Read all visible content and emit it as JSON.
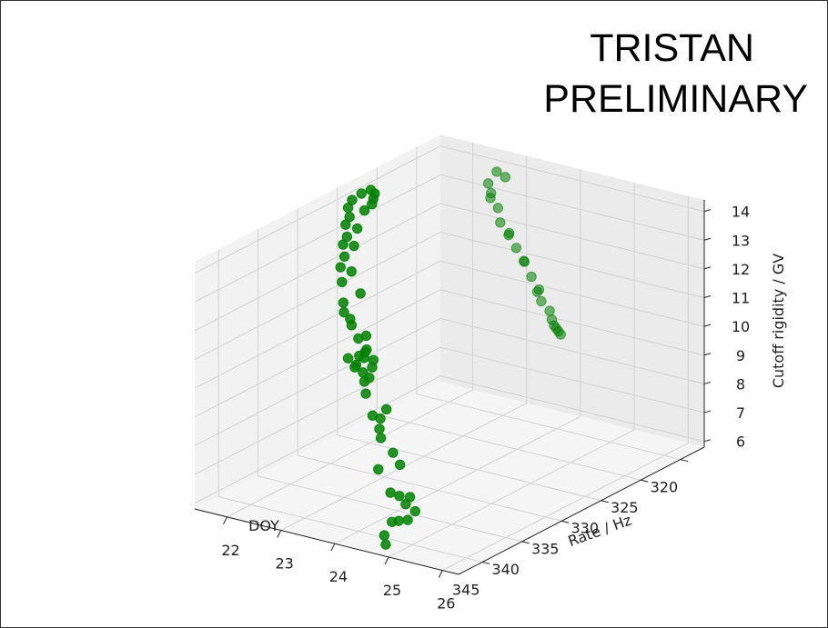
{
  "banner": {
    "line1": "TRISTAN",
    "line2": "PRELIMINARY"
  },
  "chart_data": {
    "type": "scatter",
    "projection": "3d",
    "xlabel": "DOY",
    "ylabel": "Rate / Hz",
    "zlabel": "Cutoff rigidity / GV",
    "xlim": [
      317,
      348
    ],
    "ylim": [
      21.4,
      26.3
    ],
    "zlim": [
      5.8,
      14.4
    ],
    "xticks": [
      320,
      325,
      330,
      335,
      340,
      345
    ],
    "yticks": [
      22,
      23,
      24,
      25,
      26
    ],
    "zticks": [
      6,
      7,
      8,
      9,
      10,
      11,
      12,
      13,
      14
    ],
    "grid": true,
    "marker_color": "#008000",
    "point_groups": [
      {
        "name_hint": "near",
        "points": [
          [
            347.0,
            24.8,
            6.0
          ],
          [
            346.5,
            24.7,
            6.2
          ],
          [
            346.0,
            25.2,
            7.2
          ],
          [
            345.3,
            25.0,
            7.5
          ],
          [
            344.6,
            24.7,
            7.3
          ],
          [
            344.0,
            24.6,
            6.3
          ],
          [
            343.5,
            24.4,
            6.1
          ],
          [
            343.0,
            24.3,
            7.0
          ],
          [
            342.5,
            24.0,
            7.6
          ],
          [
            342.0,
            24.2,
            8.2
          ],
          [
            341.5,
            23.9,
            8.5
          ],
          [
            341.0,
            23.8,
            8.7
          ],
          [
            340.5,
            23.6,
            9.0
          ],
          [
            340.0,
            23.4,
            9.6
          ],
          [
            339.5,
            23.3,
            9.9
          ],
          [
            339.0,
            23.2,
            10.1
          ],
          [
            338.5,
            23.0,
            10.2
          ],
          [
            338.0,
            22.9,
            10.0
          ],
          [
            337.5,
            23.0,
            10.3
          ],
          [
            337.0,
            23.1,
            10.2
          ],
          [
            336.5,
            22.9,
            10.4
          ],
          [
            336.0,
            22.8,
            10.2
          ],
          [
            335.5,
            22.6,
            10.5
          ],
          [
            335.0,
            22.4,
            10.8
          ],
          [
            334.5,
            22.3,
            10.9
          ],
          [
            334.0,
            22.1,
            11.3
          ],
          [
            333.5,
            22.0,
            11.9
          ],
          [
            333.0,
            21.9,
            12.3
          ],
          [
            332.5,
            21.9,
            12.6
          ],
          [
            332.0,
            21.8,
            12.9
          ],
          [
            331.5,
            21.8,
            13.1
          ],
          [
            331.0,
            21.7,
            13.4
          ],
          [
            330.5,
            21.7,
            13.6
          ],
          [
            330.0,
            21.6,
            13.8
          ],
          [
            329.5,
            21.6,
            14.0
          ],
          [
            329.0,
            21.7,
            14.2
          ],
          [
            328.5,
            21.8,
            14.3
          ],
          [
            328.0,
            21.8,
            14.1
          ],
          [
            327.5,
            21.7,
            13.8
          ],
          [
            327.0,
            21.6,
            13.5
          ],
          [
            339.2,
            23.4,
            10.4
          ],
          [
            338.8,
            23.1,
            10.6
          ],
          [
            338.2,
            23.2,
            9.8
          ],
          [
            340.8,
            23.9,
            9.4
          ],
          [
            336.8,
            22.6,
            10.0
          ],
          [
            335.2,
            22.7,
            10.6
          ],
          [
            334.6,
            22.2,
            11.1
          ],
          [
            333.2,
            22.3,
            11.6
          ],
          [
            332.3,
            22.0,
            12.1
          ],
          [
            331.3,
            21.9,
            12.8
          ],
          [
            330.2,
            21.8,
            13.2
          ],
          [
            329.3,
            21.8,
            13.7
          ],
          [
            344.9,
            24.9,
            6.6
          ],
          [
            343.8,
            24.7,
            6.9
          ],
          [
            341.8,
            24.3,
            7.8
          ],
          [
            340.2,
            23.7,
            8.9
          ]
        ]
      },
      {
        "name_hint": "far",
        "points": [
          [
            319.0,
            22.9,
            13.9
          ],
          [
            319.4,
            22.8,
            14.1
          ],
          [
            319.8,
            22.7,
            13.7
          ],
          [
            320.2,
            22.8,
            13.3
          ],
          [
            320.6,
            23.0,
            13.1
          ],
          [
            321.0,
            23.1,
            12.7
          ],
          [
            321.3,
            23.3,
            12.4
          ],
          [
            321.7,
            23.5,
            12.1
          ],
          [
            322.1,
            23.7,
            11.8
          ],
          [
            322.5,
            23.9,
            11.4
          ],
          [
            322.9,
            24.1,
            11.1
          ],
          [
            323.3,
            24.2,
            10.8
          ],
          [
            323.6,
            24.4,
            10.6
          ],
          [
            324.0,
            24.5,
            10.4
          ],
          [
            324.4,
            24.6,
            10.3
          ],
          [
            324.8,
            24.7,
            10.3
          ],
          [
            325.2,
            24.8,
            10.3
          ],
          [
            325.6,
            24.9,
            10.3
          ],
          [
            320.8,
            22.9,
            13.6
          ],
          [
            321.9,
            23.4,
            12.6
          ],
          [
            322.7,
            23.8,
            11.9
          ],
          [
            323.8,
            24.2,
            11.2
          ]
        ]
      }
    ]
  }
}
